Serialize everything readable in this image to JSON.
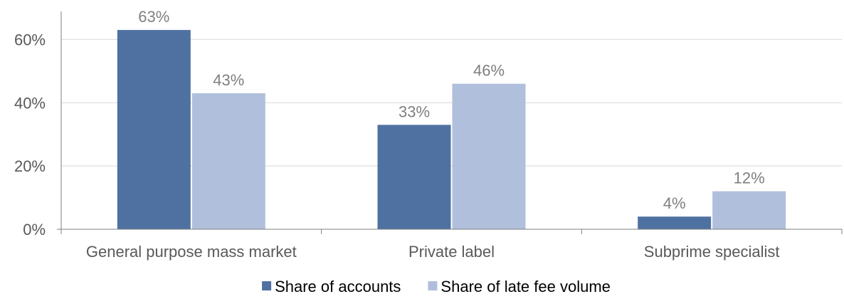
{
  "chart_data": {
    "type": "bar",
    "title": "",
    "xlabel": "",
    "ylabel": "",
    "categories": [
      "General purpose mass market",
      "Private label",
      "Subprime specialist"
    ],
    "series": [
      {
        "name": "Share of accounts",
        "values": [
          63,
          33,
          4
        ],
        "labels": [
          "63%",
          "33%",
          "4%"
        ],
        "color": "#4f71a1"
      },
      {
        "name": "Share of late fee volume",
        "values": [
          43,
          46,
          12
        ],
        "labels": [
          "43%",
          "46%",
          "12%"
        ],
        "color": "#b0bfdb"
      }
    ],
    "ylim": [
      0,
      70
    ],
    "yticks": [
      0,
      20,
      40,
      60
    ],
    "ytick_labels": [
      "0%",
      "20%",
      "40%",
      "60%"
    ],
    "grid": true,
    "legend_position": "bottom"
  }
}
